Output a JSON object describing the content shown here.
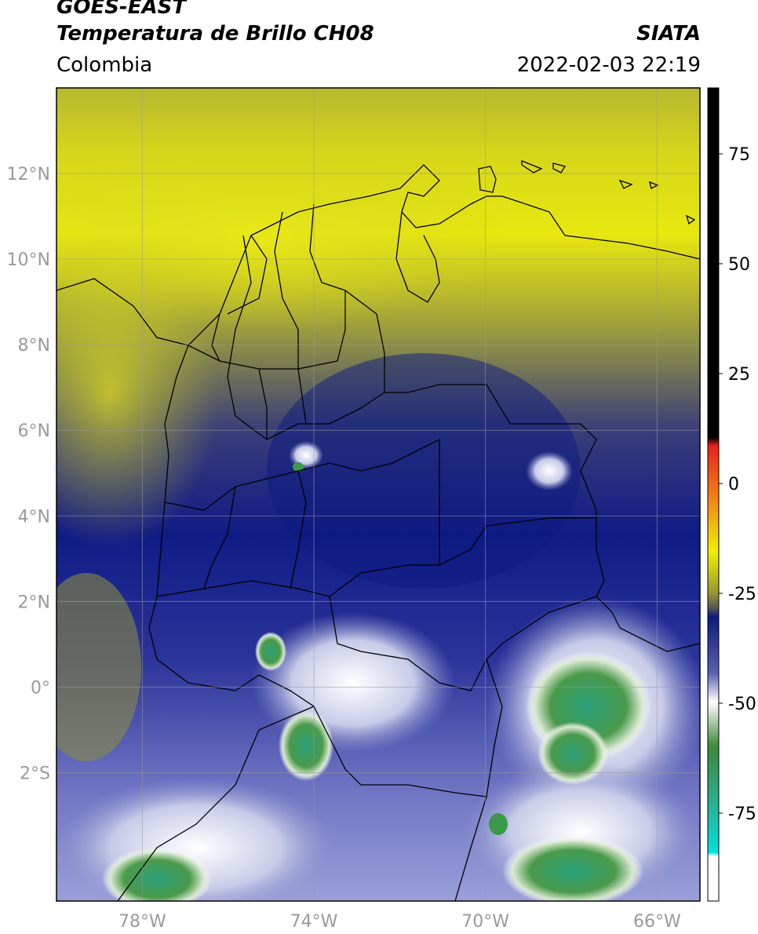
{
  "header": {
    "title_line1": "GOES-EAST",
    "title_line2": "Temperatura de Brillo CH08",
    "organization": "SIATA",
    "region": "Colombia",
    "datetime": "2022-02-03 22:19"
  },
  "map": {
    "lat_ticks": [
      {
        "value": 12,
        "label": "12°N"
      },
      {
        "value": 10,
        "label": "10°N"
      },
      {
        "value": 8,
        "label": "8°N"
      },
      {
        "value": 6,
        "label": "6°N"
      },
      {
        "value": 4,
        "label": "4°N"
      },
      {
        "value": 2,
        "label": "2°N"
      },
      {
        "value": 0,
        "label": "0°"
      },
      {
        "value": -2,
        "label": "2°S"
      }
    ],
    "lon_ticks": [
      {
        "value": -78,
        "label": "78°W"
      },
      {
        "value": -74,
        "label": "74°W"
      },
      {
        "value": -70,
        "label": "70°W"
      },
      {
        "value": -66,
        "label": "66°W"
      }
    ],
    "extent": {
      "lon_min": -80,
      "lon_max": -65,
      "lat_min": -5,
      "lat_max": 14
    }
  },
  "colorbar": {
    "ticks": [
      {
        "value": 75,
        "label": "75"
      },
      {
        "value": 50,
        "label": "50"
      },
      {
        "value": 25,
        "label": "25"
      },
      {
        "value": 0,
        "label": "0"
      },
      {
        "value": -25,
        "label": "-25"
      },
      {
        "value": -50,
        "label": "-50"
      },
      {
        "value": -75,
        "label": "-75"
      }
    ],
    "range": [
      -95,
      90
    ],
    "colors": {
      "black": "#000000",
      "red": "#e8201a",
      "orange": "#f39c12",
      "yellow": "#f0f000",
      "olive": "#7a7a3a",
      "navy": "#0c1980",
      "blue": "#5a60b0",
      "white": "#ffffff",
      "green": "#3a8a3a",
      "teal": "#2ab090",
      "cyan": "#00e0e0"
    }
  }
}
